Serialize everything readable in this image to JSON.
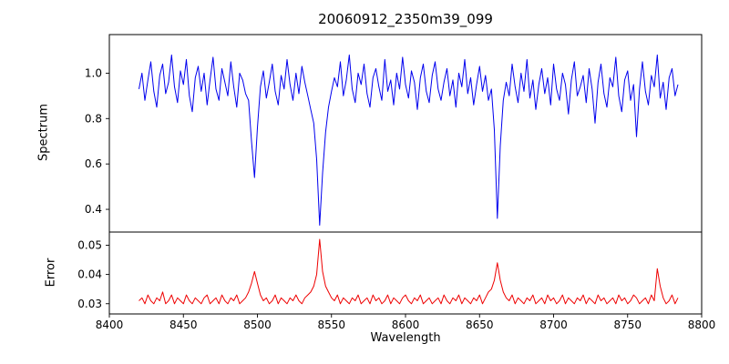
{
  "figure": {
    "title": "20060912_2350m39_099",
    "xlabel": "Wavelength",
    "ylabel_top": "Spectrum",
    "ylabel_bottom": "Error"
  },
  "chart_data": {
    "type": "line",
    "title": "20060912_2350m39_099",
    "xlabel": "Wavelength",
    "xlim": [
      8400,
      8800
    ],
    "xtick_values": [
      8400,
      8450,
      8500,
      8550,
      8600,
      8650,
      8700,
      8750,
      8800
    ],
    "xtick_labels": [
      "8400",
      "8450",
      "8500",
      "8550",
      "8600",
      "8650",
      "8700",
      "8750",
      "8800"
    ],
    "grid": false,
    "legend": "none",
    "panels": [
      {
        "name": "spectrum",
        "ylabel": "Spectrum",
        "color": "#0000ee",
        "ylim": [
          0.3,
          1.17
        ],
        "ytick_values": [
          0.4,
          0.6,
          0.8,
          1.0
        ],
        "ytick_labels": [
          "0.4",
          "0.6",
          "0.8",
          "1.0"
        ],
        "x_start": 8420,
        "x_step": 2,
        "y": [
          0.93,
          1.0,
          0.88,
          0.97,
          1.05,
          0.92,
          0.85,
          0.99,
          1.04,
          0.91,
          0.96,
          1.08,
          0.94,
          0.87,
          1.01,
          0.95,
          1.06,
          0.9,
          0.83,
          0.98,
          1.03,
          0.92,
          1.0,
          0.86,
          0.97,
          1.07,
          0.93,
          0.88,
          1.02,
          0.96,
          0.9,
          1.05,
          0.94,
          0.85,
          1.0,
          0.97,
          0.91,
          0.88,
          0.7,
          0.54,
          0.76,
          0.94,
          1.01,
          0.89,
          0.96,
          1.04,
          0.92,
          0.86,
          0.99,
          0.93,
          1.06,
          0.95,
          0.88,
          1.0,
          0.91,
          1.03,
          0.96,
          0.9,
          0.84,
          0.78,
          0.62,
          0.33,
          0.56,
          0.74,
          0.85,
          0.92,
          0.98,
          0.94,
          1.05,
          0.9,
          0.97,
          1.08,
          0.93,
          0.87,
          1.0,
          0.95,
          1.04,
          0.91,
          0.85,
          0.98,
          1.02,
          0.94,
          0.88,
          1.06,
          0.92,
          0.97,
          0.86,
          1.0,
          0.93,
          1.07,
          0.95,
          0.89,
          1.01,
          0.96,
          0.84,
          0.98,
          1.04,
          0.92,
          0.87,
          0.99,
          1.05,
          0.93,
          0.88,
          0.96,
          1.02,
          0.9,
          0.97,
          0.85,
          1.0,
          0.94,
          1.06,
          0.91,
          0.98,
          0.86,
          0.95,
          1.03,
          0.92,
          0.99,
          0.88,
          0.93,
          0.75,
          0.36,
          0.68,
          0.88,
          0.96,
          0.9,
          1.04,
          0.94,
          0.87,
          1.0,
          0.92,
          1.06,
          0.89,
          0.97,
          0.84,
          0.95,
          1.02,
          0.91,
          0.98,
          0.86,
          1.04,
          0.93,
          0.88,
          1.0,
          0.95,
          0.82,
          0.97,
          1.05,
          0.9,
          0.94,
          0.99,
          0.87,
          1.02,
          0.93,
          0.78,
          0.96,
          1.04,
          0.91,
          0.85,
          0.98,
          0.94,
          1.07,
          0.9,
          0.83,
          0.97,
          1.01,
          0.88,
          0.95,
          0.72,
          0.93,
          1.05,
          0.92,
          0.86,
          0.99,
          0.94,
          1.08,
          0.89,
          0.96,
          0.84,
          0.98,
          1.02,
          0.9,
          0.95
        ]
      },
      {
        "name": "error",
        "ylabel": "Error",
        "color": "#ee0000",
        "ylim": [
          0.0265,
          0.0545
        ],
        "ytick_values": [
          0.03,
          0.04,
          0.05
        ],
        "ytick_labels": [
          "0.03",
          "0.04",
          "0.05"
        ],
        "x_start": 8420,
        "x_step": 2,
        "y": [
          0.031,
          0.032,
          0.03,
          0.033,
          0.031,
          0.03,
          0.032,
          0.031,
          0.034,
          0.03,
          0.031,
          0.033,
          0.03,
          0.032,
          0.031,
          0.03,
          0.033,
          0.031,
          0.03,
          0.032,
          0.031,
          0.03,
          0.032,
          0.033,
          0.03,
          0.031,
          0.032,
          0.03,
          0.033,
          0.031,
          0.03,
          0.032,
          0.031,
          0.033,
          0.03,
          0.031,
          0.032,
          0.034,
          0.037,
          0.041,
          0.037,
          0.033,
          0.031,
          0.032,
          0.03,
          0.031,
          0.033,
          0.03,
          0.032,
          0.031,
          0.03,
          0.032,
          0.031,
          0.033,
          0.031,
          0.03,
          0.032,
          0.033,
          0.034,
          0.036,
          0.04,
          0.052,
          0.041,
          0.036,
          0.034,
          0.032,
          0.031,
          0.033,
          0.03,
          0.032,
          0.031,
          0.03,
          0.032,
          0.031,
          0.033,
          0.03,
          0.031,
          0.032,
          0.03,
          0.033,
          0.031,
          0.032,
          0.03,
          0.031,
          0.033,
          0.03,
          0.032,
          0.031,
          0.03,
          0.032,
          0.033,
          0.031,
          0.03,
          0.032,
          0.031,
          0.033,
          0.03,
          0.031,
          0.032,
          0.03,
          0.031,
          0.032,
          0.03,
          0.033,
          0.031,
          0.03,
          0.032,
          0.031,
          0.033,
          0.03,
          0.032,
          0.031,
          0.03,
          0.032,
          0.031,
          0.033,
          0.03,
          0.032,
          0.034,
          0.035,
          0.038,
          0.044,
          0.038,
          0.034,
          0.032,
          0.031,
          0.033,
          0.03,
          0.032,
          0.031,
          0.03,
          0.032,
          0.031,
          0.033,
          0.03,
          0.031,
          0.032,
          0.03,
          0.033,
          0.031,
          0.032,
          0.03,
          0.031,
          0.033,
          0.03,
          0.032,
          0.031,
          0.03,
          0.032,
          0.031,
          0.033,
          0.03,
          0.032,
          0.031,
          0.03,
          0.033,
          0.031,
          0.032,
          0.03,
          0.031,
          0.032,
          0.03,
          0.033,
          0.031,
          0.032,
          0.03,
          0.031,
          0.033,
          0.032,
          0.03,
          0.031,
          0.032,
          0.03,
          0.033,
          0.031,
          0.042,
          0.036,
          0.032,
          0.03,
          0.031,
          0.033,
          0.03,
          0.032
        ]
      }
    ]
  }
}
